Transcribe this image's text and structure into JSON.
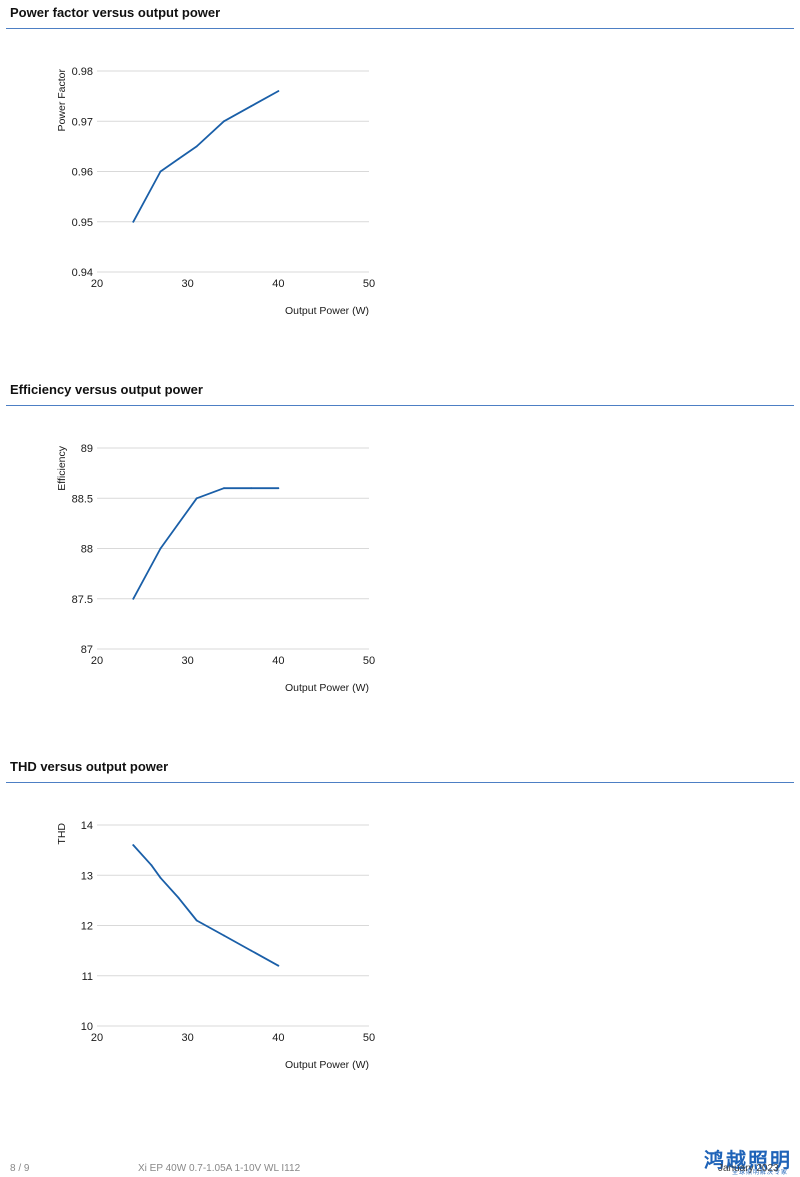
{
  "sections": [
    {
      "title": "Power factor versus output power"
    },
    {
      "title": "Efficiency versus output power"
    },
    {
      "title": "THD versus output power"
    }
  ],
  "chart_data": [
    {
      "type": "line",
      "title": "Power factor versus output power",
      "xlabel": "Output Power (W)",
      "ylabel": "Power Factor",
      "xlim": [
        20,
        50
      ],
      "ylim": [
        0.94,
        0.98
      ],
      "xticks": [
        "20",
        "30",
        "40",
        "50"
      ],
      "yticks": [
        "0.98",
        "0.97",
        "0.96",
        "0.95",
        "0.94"
      ],
      "grid": true,
      "color": "#1a5fa8",
      "x": [
        24,
        27,
        29,
        31,
        34,
        37,
        40
      ],
      "y": [
        0.95,
        0.96,
        0.9625,
        0.965,
        0.97,
        0.973,
        0.976
      ]
    },
    {
      "type": "line",
      "title": "Efficiency versus output power",
      "xlabel": "Output Power (W)",
      "ylabel": "Efficiency",
      "xlim": [
        20,
        50
      ],
      "ylim": [
        87,
        89
      ],
      "xticks": [
        "20",
        "30",
        "40",
        "50"
      ],
      "yticks": [
        "89",
        "88.5",
        "88",
        "87.5",
        "87"
      ],
      "grid": true,
      "color": "#1a5fa8",
      "x": [
        24,
        27,
        29,
        31,
        34,
        37,
        40
      ],
      "y": [
        87.5,
        88.0,
        88.25,
        88.5,
        88.6,
        88.6,
        88.6
      ]
    },
    {
      "type": "line",
      "title": "THD versus output power",
      "xlabel": "Output Power (W)",
      "ylabel": "THD",
      "xlim": [
        20,
        50
      ],
      "ylim": [
        10,
        14
      ],
      "xticks": [
        "20",
        "30",
        "40",
        "50"
      ],
      "yticks": [
        "14",
        "13",
        "12",
        "11",
        "10"
      ],
      "grid": true,
      "color": "#1a5fa8",
      "x": [
        24,
        26,
        27,
        29,
        31,
        34,
        37,
        40
      ],
      "y": [
        13.6,
        13.2,
        12.95,
        12.55,
        12.1,
        11.8,
        11.5,
        11.2
      ]
    }
  ],
  "footer": {
    "page": "8 / 9",
    "product": "Xi EP 40W 0.7-1.05A 1-10V WL I112",
    "date": "January 2023",
    "logo_text": "鸿越照明",
    "logo_sub": "全球照明解决专家"
  }
}
